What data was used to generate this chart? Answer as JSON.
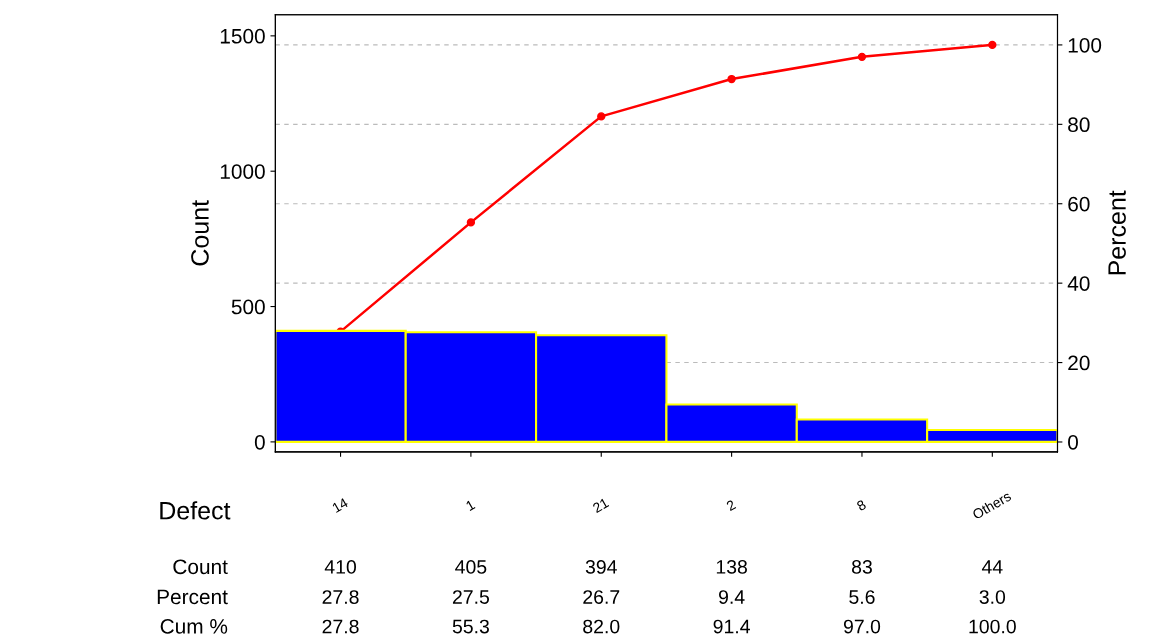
{
  "chart_data": {
    "type": "bar",
    "xlabel": "Defect",
    "ylabel": "Count",
    "y2label": "Percent",
    "categories": [
      "14",
      "1",
      "21",
      "2",
      "8",
      "Others"
    ],
    "series": [
      {
        "color": "#0000ff",
        "values": [
          410,
          405,
          394,
          138,
          83,
          44
        ],
        "value_labels": [
          "410",
          "405",
          "394",
          "138",
          "83",
          "44"
        ]
      },
      {
        "type": "line",
        "axis": "y2",
        "color": "#ff0000",
        "marker": "circle",
        "values": [
          27.8,
          55.3,
          82.0,
          91.4,
          97.0,
          100.0
        ],
        "value_labels": [
          "27.8",
          "55.3",
          "82.0",
          "91.4",
          "97.0",
          "100.0"
        ]
      }
    ],
    "ylim": [
      -37,
      1578
    ],
    "yticks": [
      0,
      500,
      1000,
      1500
    ],
    "y2lim": [
      -2.5,
      107.6
    ],
    "y2ticks": [
      0,
      20,
      40,
      60,
      80,
      100
    ],
    "grid": "y",
    "legend": false,
    "annotations": [
      "Count",
      "Percent",
      "Cum %",
      "27.8",
      "27.5",
      "26.7",
      "9.4",
      "5.6",
      "3.0"
    ]
  }
}
